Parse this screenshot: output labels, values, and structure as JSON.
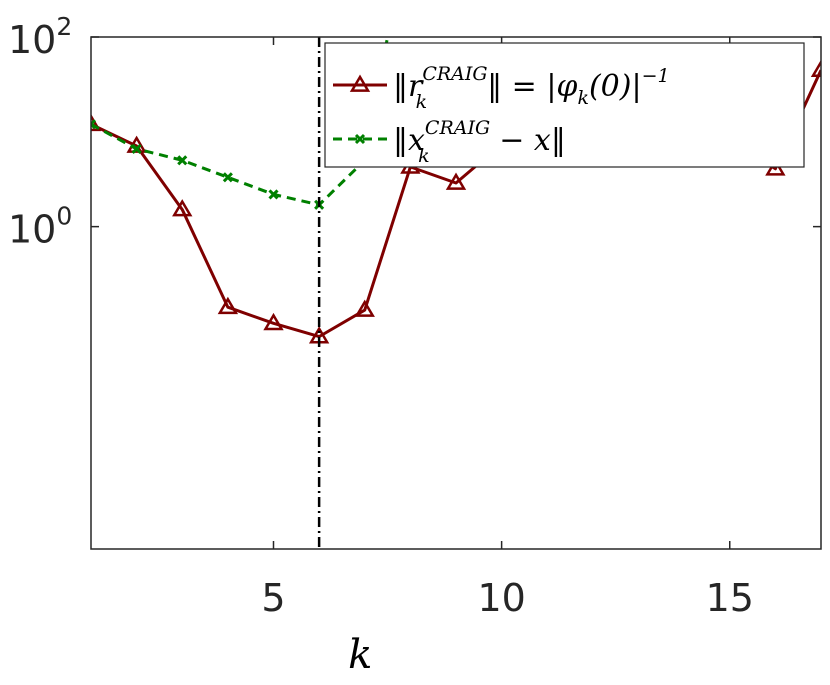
{
  "chart_data": {
    "type": "line",
    "xlabel": "k",
    "ylabel": "",
    "xlim": [
      1,
      17
    ],
    "ylim_log10": [
      -3.4,
      2
    ],
    "yscale": "log",
    "grid": false,
    "legend_position": "top-right",
    "x_ticks": [
      {
        "value": 5,
        "label": "5"
      },
      {
        "value": 10,
        "label": "10"
      },
      {
        "value": 15,
        "label": "15"
      }
    ],
    "y_ticks": [
      {
        "value": 0,
        "base": "10",
        "exp": "0"
      },
      {
        "value": 2,
        "base": "10",
        "exp": "2"
      }
    ],
    "vline": {
      "x": 6,
      "color": "#000000",
      "style": "dash-dot"
    },
    "series": [
      {
        "name": "||r_k^CRAIG|| = |φ_k(0)|^-1",
        "legend": {
          "a": "‖r",
          "sub": "k",
          "sup": "CRAIG",
          "b": "‖ = |φ",
          "c": "k",
          "d": "(0)|",
          "e": "−1"
        },
        "color": "#7f0000",
        "marker": "triangle",
        "line_style": "solid",
        "x": [
          1,
          2,
          3,
          4,
          5,
          6,
          7,
          8,
          9,
          10,
          11,
          12,
          13,
          14,
          15,
          16,
          17
        ],
        "log10_y": [
          1.08,
          0.85,
          0.18,
          -0.85,
          -1.02,
          -1.16,
          -0.88,
          0.63,
          0.46,
          0.87,
          0.93,
          1.08,
          1.18,
          1.05,
          0.93,
          0.61,
          1.65
        ]
      },
      {
        "name": "||x_k^CRAIG - x||",
        "legend": {
          "a": "‖x",
          "sub": "k",
          "sup": "CRAIG",
          "b": " − x‖"
        },
        "color": "#008000",
        "marker": "x",
        "line_style": "dashed",
        "x": [
          1,
          2,
          3,
          4,
          5,
          6,
          7,
          7.5
        ],
        "log10_y": [
          1.08,
          0.82,
          0.7,
          0.52,
          0.34,
          0.23,
          0.7,
          2.0
        ]
      }
    ]
  }
}
